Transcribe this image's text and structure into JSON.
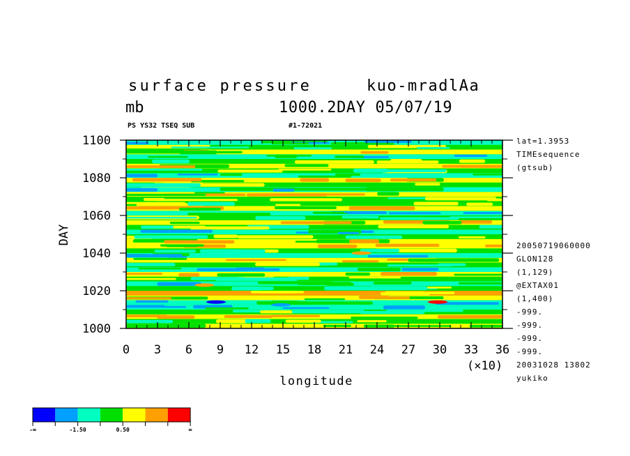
{
  "header": {
    "title_left": "surface pressure",
    "title_right": "kuo-mradlAa",
    "units": "mb",
    "run_info": "1000.2DAY 05/07/19",
    "subtitle_left": "PS YS32 TSEQ SUB",
    "subtitle_right": "#1-72021"
  },
  "side_info": {
    "top": [
      "lat=1.3953",
      "TIMEsequence",
      "(gtsub)"
    ],
    "bottom": [
      "20050719060000",
      "GLON128",
      "(1,129)",
      "@EXTAX01",
      "(1,400)",
      "-999.",
      "-999.",
      "-999.",
      "-999.",
      "20031028  13802",
      "yukiko"
    ]
  },
  "colorbar": {
    "colors": [
      "#0000ff",
      "#00a0ff",
      "#00ffc0",
      "#00e000",
      "#ffff00",
      "#ffa000",
      "#ff0000"
    ],
    "labels": [
      "-∞",
      "-1.50",
      "0.50",
      "∞"
    ]
  },
  "chart_data": {
    "type": "heatmap",
    "title": "surface pressure",
    "xlabel": "longitude",
    "ylabel": "DAY",
    "x_multiplier": "(×10)",
    "xlim": [
      0,
      36
    ],
    "ylim": [
      1000,
      1100
    ],
    "x_ticks": [
      "0",
      "3",
      "6",
      "9",
      "12",
      "15",
      "18",
      "21",
      "24",
      "27",
      "30",
      "33",
      "36"
    ],
    "y_ticks": [
      "1000",
      "1020",
      "1040",
      "1060",
      "1080",
      "1100"
    ],
    "rows_day_start_step": [
      1000,
      2.5
    ],
    "rows_dominant_color": [
      "#ffff00",
      "#00e000",
      "#ffff00",
      "#00e000",
      "#00ffc0",
      "#00ffc0",
      "#ffff00",
      "#ffa000",
      "#00e000",
      "#00ffc0",
      "#00e000",
      "#ffff00",
      "#00ffc0",
      "#00e000",
      "#ffff00",
      "#00ffc0",
      "#00e000",
      "#ffff00",
      "#ffff00",
      "#00e000",
      "#00ffc0",
      "#00e000",
      "#ffff00",
      "#00e000",
      "#00ffc0",
      "#ffff00",
      "#00e000",
      "#00e000",
      "#ffff00",
      "#00ffc0",
      "#00e000",
      "#ffff00",
      "#00ffc0",
      "#00e000",
      "#ffff00",
      "#00e000",
      "#00ffc0",
      "#ffff00",
      "#00e000",
      "#00ffc0"
    ]
  }
}
